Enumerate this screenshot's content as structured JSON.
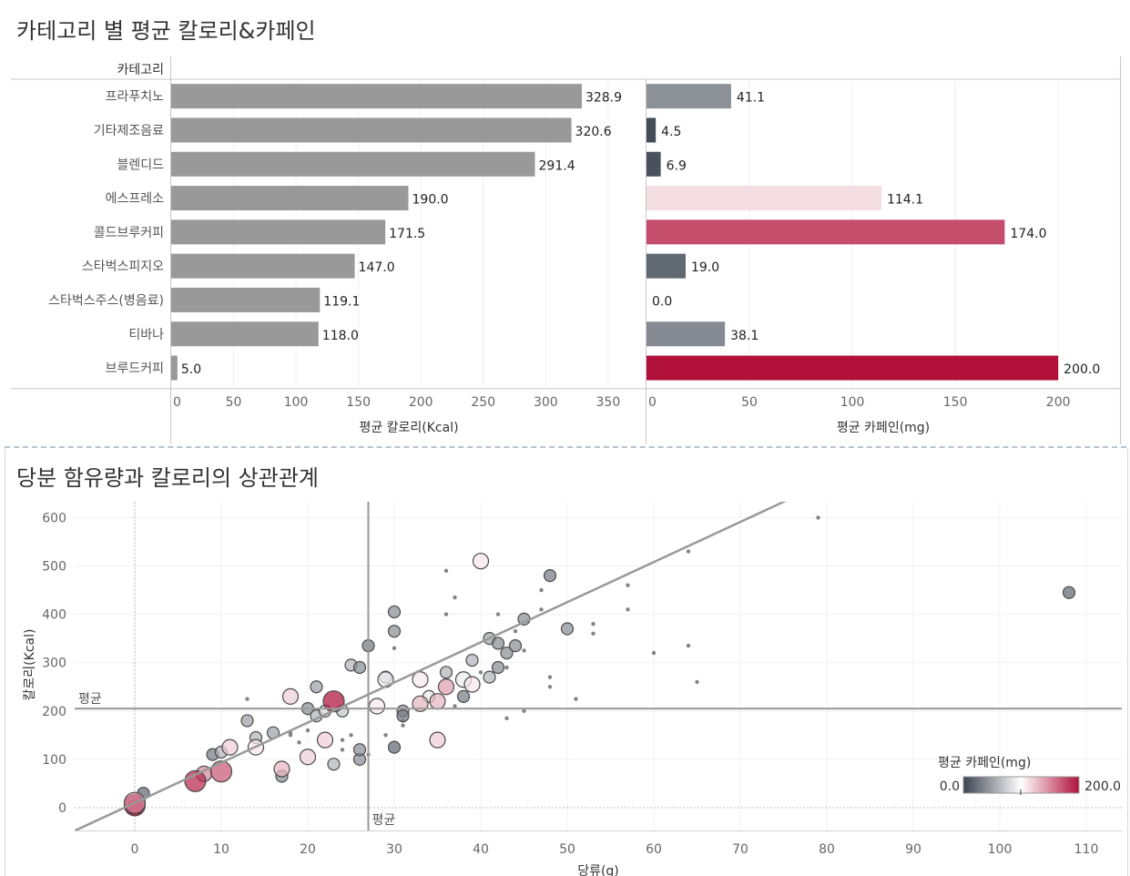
{
  "dashboard": {
    "title_top": "카테고리 별 평균 칼로리&카페인",
    "title_bottom": "당분 함유량과 칼로리의 상관관계"
  },
  "chart_data": [
    {
      "type": "bar",
      "orientation": "horizontal",
      "category_header": "카테고리",
      "categories": [
        "프라푸치노",
        "기타제조음료",
        "블렌디드",
        "에스프레소",
        "콜드브루커피",
        "스타벅스피지오",
        "스타벅스주스(병음료)",
        "티바나",
        "브루드커피"
      ],
      "series": [
        {
          "name": "",
          "values": [
            328.9,
            320.6,
            291.4,
            190.0,
            171.5,
            147.0,
            119.1,
            118.0,
            5.0
          ],
          "labels": [
            "328.9",
            "320.6",
            "291.4",
            "190.0",
            "171.5",
            "147.0",
            "119.1",
            "118.0",
            "5.0"
          ]
        }
      ],
      "xlabel": "평균 칼로리(Kcal)",
      "xlim": [
        0,
        380
      ],
      "xticks": [
        "0",
        "50",
        "100",
        "150",
        "200",
        "250",
        "300",
        "350"
      ],
      "color": "#999999"
    },
    {
      "type": "bar",
      "orientation": "horizontal",
      "categories": [
        "프라푸치노",
        "기타제조음료",
        "블렌디드",
        "에스프레소",
        "콜드브루커피",
        "스타벅스피지오",
        "스타벅스주스(병음료)",
        "티바나",
        "브루드커피"
      ],
      "series": [
        {
          "name": "",
          "values": [
            41.1,
            4.5,
            6.9,
            114.1,
            174.0,
            19.0,
            0.0,
            38.1,
            200.0
          ],
          "labels": [
            "41.1",
            "4.5",
            "6.9",
            "114.1",
            "174.0",
            "19.0",
            "0.0",
            "38.1",
            "200.0"
          ]
        }
      ],
      "xlabel": "평균 카페인(mg)",
      "xlim": [
        0,
        230
      ],
      "xticks": [
        "0",
        "50",
        "100",
        "150",
        "200"
      ],
      "color_scale": {
        "min": 0,
        "max": 200,
        "low": "#3b4450",
        "mid": "#ffffff",
        "high": "#b0103a"
      }
    },
    {
      "type": "scatter",
      "xlabel": "당류(g)",
      "ylabel": "칼로리(Kcal)",
      "xlim": [
        -7,
        115
      ],
      "ylim": [
        -45,
        630
      ],
      "xticks": [
        "0",
        "10",
        "20",
        "30",
        "40",
        "50",
        "60",
        "70",
        "80",
        "90",
        "100",
        "110"
      ],
      "yticks": [
        "0",
        "100",
        "200",
        "300",
        "400",
        "500",
        "600"
      ],
      "reference_lines": {
        "x_mean": 27,
        "y_mean": 205,
        "x_label": "평균",
        "y_label": "평균"
      },
      "trend_line": {
        "intercept": 10,
        "slope": 8.3
      },
      "legend": {
        "title": "평균 카페인(mg)",
        "min_label": "0.0",
        "max_label": "200.0",
        "placement": "bottom-right"
      },
      "points": [
        [
          0,
          5,
          200,
          3
        ],
        [
          0,
          10,
          150,
          3
        ],
        [
          0,
          0,
          180,
          2
        ],
        [
          1,
          30,
          20,
          1
        ],
        [
          7,
          55,
          190,
          3
        ],
        [
          8,
          70,
          150,
          2
        ],
        [
          10,
          75,
          170,
          3
        ],
        [
          9,
          110,
          30,
          1
        ],
        [
          10,
          115,
          60,
          1
        ],
        [
          11,
          125,
          120,
          2
        ],
        [
          13,
          180,
          50,
          1
        ],
        [
          13,
          225,
          20,
          0
        ],
        [
          14,
          125,
          110,
          2
        ],
        [
          14,
          145,
          60,
          1
        ],
        [
          16,
          155,
          50,
          1
        ],
        [
          17,
          80,
          130,
          2
        ],
        [
          17,
          65,
          40,
          1
        ],
        [
          18,
          230,
          120,
          2
        ],
        [
          18,
          155,
          20,
          0
        ],
        [
          19,
          135,
          30,
          0
        ],
        [
          20,
          205,
          40,
          1
        ],
        [
          20,
          105,
          120,
          2
        ],
        [
          21,
          250,
          50,
          1
        ],
        [
          21,
          190,
          60,
          1
        ],
        [
          22,
          200,
          80,
          1
        ],
        [
          23,
          220,
          200,
          3
        ],
        [
          24,
          200,
          70,
          1
        ],
        [
          22,
          140,
          120,
          2
        ],
        [
          23,
          90,
          60,
          1
        ],
        [
          24,
          140,
          20,
          0
        ],
        [
          24,
          120,
          30,
          0
        ],
        [
          25,
          295,
          60,
          1
        ],
        [
          26,
          290,
          40,
          1
        ],
        [
          26,
          100,
          40,
          1
        ],
        [
          26,
          120,
          40,
          1
        ],
        [
          27,
          110,
          10,
          0
        ],
        [
          27,
          335,
          30,
          1
        ],
        [
          28,
          210,
          110,
          2
        ],
        [
          29,
          265,
          90,
          2
        ],
        [
          29,
          270,
          70,
          1
        ],
        [
          30,
          405,
          40,
          1
        ],
        [
          30,
          365,
          40,
          1
        ],
        [
          30,
          125,
          20,
          1
        ],
        [
          31,
          200,
          40,
          1
        ],
        [
          31,
          190,
          30,
          1
        ],
        [
          31,
          180,
          20,
          0
        ],
        [
          33,
          265,
          110,
          2
        ],
        [
          33,
          215,
          130,
          2
        ],
        [
          34,
          230,
          90,
          1
        ],
        [
          35,
          220,
          130,
          2
        ],
        [
          35,
          140,
          120,
          2
        ],
        [
          36,
          250,
          140,
          2
        ],
        [
          36,
          280,
          60,
          1
        ],
        [
          37,
          435,
          10,
          0
        ],
        [
          37,
          210,
          20,
          0
        ],
        [
          38,
          265,
          90,
          2
        ],
        [
          38,
          230,
          30,
          1
        ],
        [
          39,
          255,
          110,
          2
        ],
        [
          39,
          305,
          60,
          1
        ],
        [
          40,
          510,
          110,
          2
        ],
        [
          41,
          350,
          50,
          1
        ],
        [
          41,
          270,
          60,
          1
        ],
        [
          42,
          340,
          40,
          1
        ],
        [
          42,
          290,
          40,
          1
        ],
        [
          43,
          320,
          40,
          1
        ],
        [
          44,
          335,
          40,
          1
        ],
        [
          45,
          390,
          40,
          1
        ],
        [
          45,
          325,
          30,
          0
        ],
        [
          44,
          365,
          20,
          0
        ],
        [
          45,
          200,
          10,
          0
        ],
        [
          48,
          480,
          30,
          1
        ],
        [
          50,
          370,
          40,
          1
        ],
        [
          51,
          225,
          20,
          0
        ],
        [
          53,
          380,
          20,
          0
        ],
        [
          53,
          360,
          20,
          0
        ],
        [
          57,
          460,
          20,
          0
        ],
        [
          57,
          410,
          20,
          0
        ],
        [
          60,
          320,
          20,
          0
        ],
        [
          64,
          530,
          20,
          0
        ],
        [
          64,
          335,
          20,
          0
        ],
        [
          65,
          260,
          20,
          0
        ],
        [
          79,
          600,
          20,
          0
        ],
        [
          108,
          445,
          20,
          1
        ],
        [
          47,
          410,
          20,
          0
        ],
        [
          47,
          450,
          20,
          0
        ],
        [
          43,
          290,
          20,
          0
        ],
        [
          43,
          185,
          20,
          0
        ],
        [
          36,
          490,
          20,
          0
        ],
        [
          36,
          400,
          20,
          0
        ],
        [
          48,
          270,
          20,
          0
        ],
        [
          48,
          250,
          20,
          0
        ],
        [
          40,
          280,
          20,
          0
        ],
        [
          42,
          400,
          20,
          0
        ],
        [
          30,
          330,
          20,
          0
        ],
        [
          31,
          170,
          20,
          0
        ],
        [
          29,
          150,
          20,
          0
        ],
        [
          25,
          150,
          20,
          0
        ],
        [
          20,
          160,
          20,
          0
        ],
        [
          18,
          150,
          20,
          0
        ]
      ]
    }
  ]
}
